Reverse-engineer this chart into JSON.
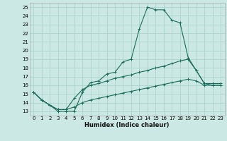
{
  "xlabel": "Humidex (Indice chaleur)",
  "background_color": "#cce8e4",
  "grid_color": "#aad4cc",
  "line_color": "#1a6b5a",
  "xlim": [
    -0.5,
    23.5
  ],
  "ylim": [
    12.5,
    25.5
  ],
  "xticks": [
    0,
    1,
    2,
    3,
    4,
    5,
    6,
    7,
    8,
    9,
    10,
    11,
    12,
    13,
    14,
    15,
    16,
    17,
    18,
    19,
    20,
    21,
    22,
    23
  ],
  "yticks": [
    13,
    14,
    15,
    16,
    17,
    18,
    19,
    20,
    21,
    22,
    23,
    24,
    25
  ],
  "line1_x": [
    0,
    1,
    2,
    3,
    4,
    5,
    6,
    7,
    8,
    9,
    10,
    11,
    12,
    13,
    14,
    15,
    16,
    17,
    18,
    19,
    20,
    21,
    22,
    23
  ],
  "line1_y": [
    15.2,
    14.3,
    13.7,
    13.0,
    13.0,
    13.0,
    15.2,
    16.3,
    16.5,
    17.3,
    17.5,
    18.7,
    19.0,
    22.5,
    25.0,
    24.7,
    24.7,
    23.5,
    23.2,
    19.2,
    17.7,
    16.2,
    16.2,
    16.2
  ],
  "line2_x": [
    0,
    1,
    2,
    3,
    4,
    5,
    6,
    7,
    8,
    9,
    10,
    11,
    12,
    13,
    14,
    15,
    16,
    17,
    18,
    19,
    20,
    21,
    22,
    23
  ],
  "line2_y": [
    15.2,
    14.3,
    13.7,
    13.2,
    13.2,
    14.5,
    15.5,
    16.0,
    16.2,
    16.5,
    16.8,
    17.0,
    17.2,
    17.5,
    17.7,
    18.0,
    18.2,
    18.5,
    18.8,
    19.0,
    17.7,
    16.2,
    16.0,
    16.0
  ],
  "line3_x": [
    0,
    1,
    2,
    3,
    4,
    5,
    6,
    7,
    8,
    9,
    10,
    11,
    12,
    13,
    14,
    15,
    16,
    17,
    18,
    19,
    20,
    21,
    22,
    23
  ],
  "line3_y": [
    15.2,
    14.3,
    13.7,
    13.2,
    13.2,
    13.5,
    14.0,
    14.3,
    14.5,
    14.7,
    14.9,
    15.1,
    15.3,
    15.5,
    15.7,
    15.9,
    16.1,
    16.3,
    16.5,
    16.7,
    16.5,
    16.0,
    16.0,
    16.0
  ],
  "xlabel_fontsize": 6.0,
  "tick_fontsize": 5.0
}
